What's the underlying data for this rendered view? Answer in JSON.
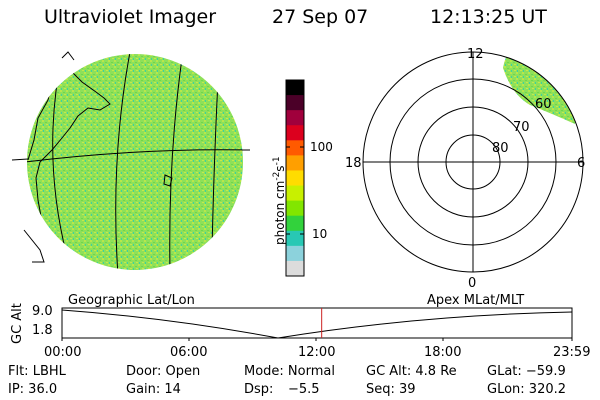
{
  "header": {
    "instrument": "Ultraviolet Imager",
    "date": "27 Sep 07",
    "time": "12:13:25 UT"
  },
  "colorbar": {
    "label": "photon cm",
    "label_sup1": "-2",
    "label_mid": "s",
    "label_sup2": "-1",
    "ticks": [
      "100",
      "10"
    ],
    "tick_values": [
      100,
      10
    ],
    "colors": [
      "#000000",
      "#4b0028",
      "#a0003c",
      "#dc001e",
      "#ff5a00",
      "#ff9f00",
      "#ffdc00",
      "#c8f000",
      "#82e600",
      "#32d23c",
      "#28c8b4",
      "#8cd2dc",
      "#dcdcdc"
    ]
  },
  "polar": {
    "mlt_labels": {
      "top": "12",
      "left": "18",
      "right": "6",
      "bottom": "0"
    },
    "lat_labels": [
      "60",
      "70",
      "80"
    ]
  },
  "timeline": {
    "left_title": "Geographic Lat/Lon",
    "right_title": "Apex MLat/MLT",
    "ylabel": "GC Alt",
    "ymax": "9.0",
    "ymin": "1.8",
    "xticks": [
      "00:00",
      "06:00",
      "12:00",
      "18:00",
      "23:59"
    ],
    "current_time_hours": 12.22,
    "marker_color": "#cc2222"
  },
  "info": {
    "filter": "Flt: LBHL",
    "door": "Door: Open",
    "mode": "Mode: Normal",
    "gc_alt": "GC Alt: 4.8 Re",
    "glat": "GLat: −59.9",
    "ip": "IP: 36.0",
    "gain": "Gain: 14",
    "dsp_label": "Dsp:",
    "dsp_value": "−5.5",
    "seq": "Seq: 39",
    "glon": "GLon: 320.2"
  },
  "colors": {
    "disk_base": "#8ee05a",
    "disk_alt": "#b8e84a",
    "disk_cyan": "#3cd2a0",
    "line": "#000000"
  }
}
